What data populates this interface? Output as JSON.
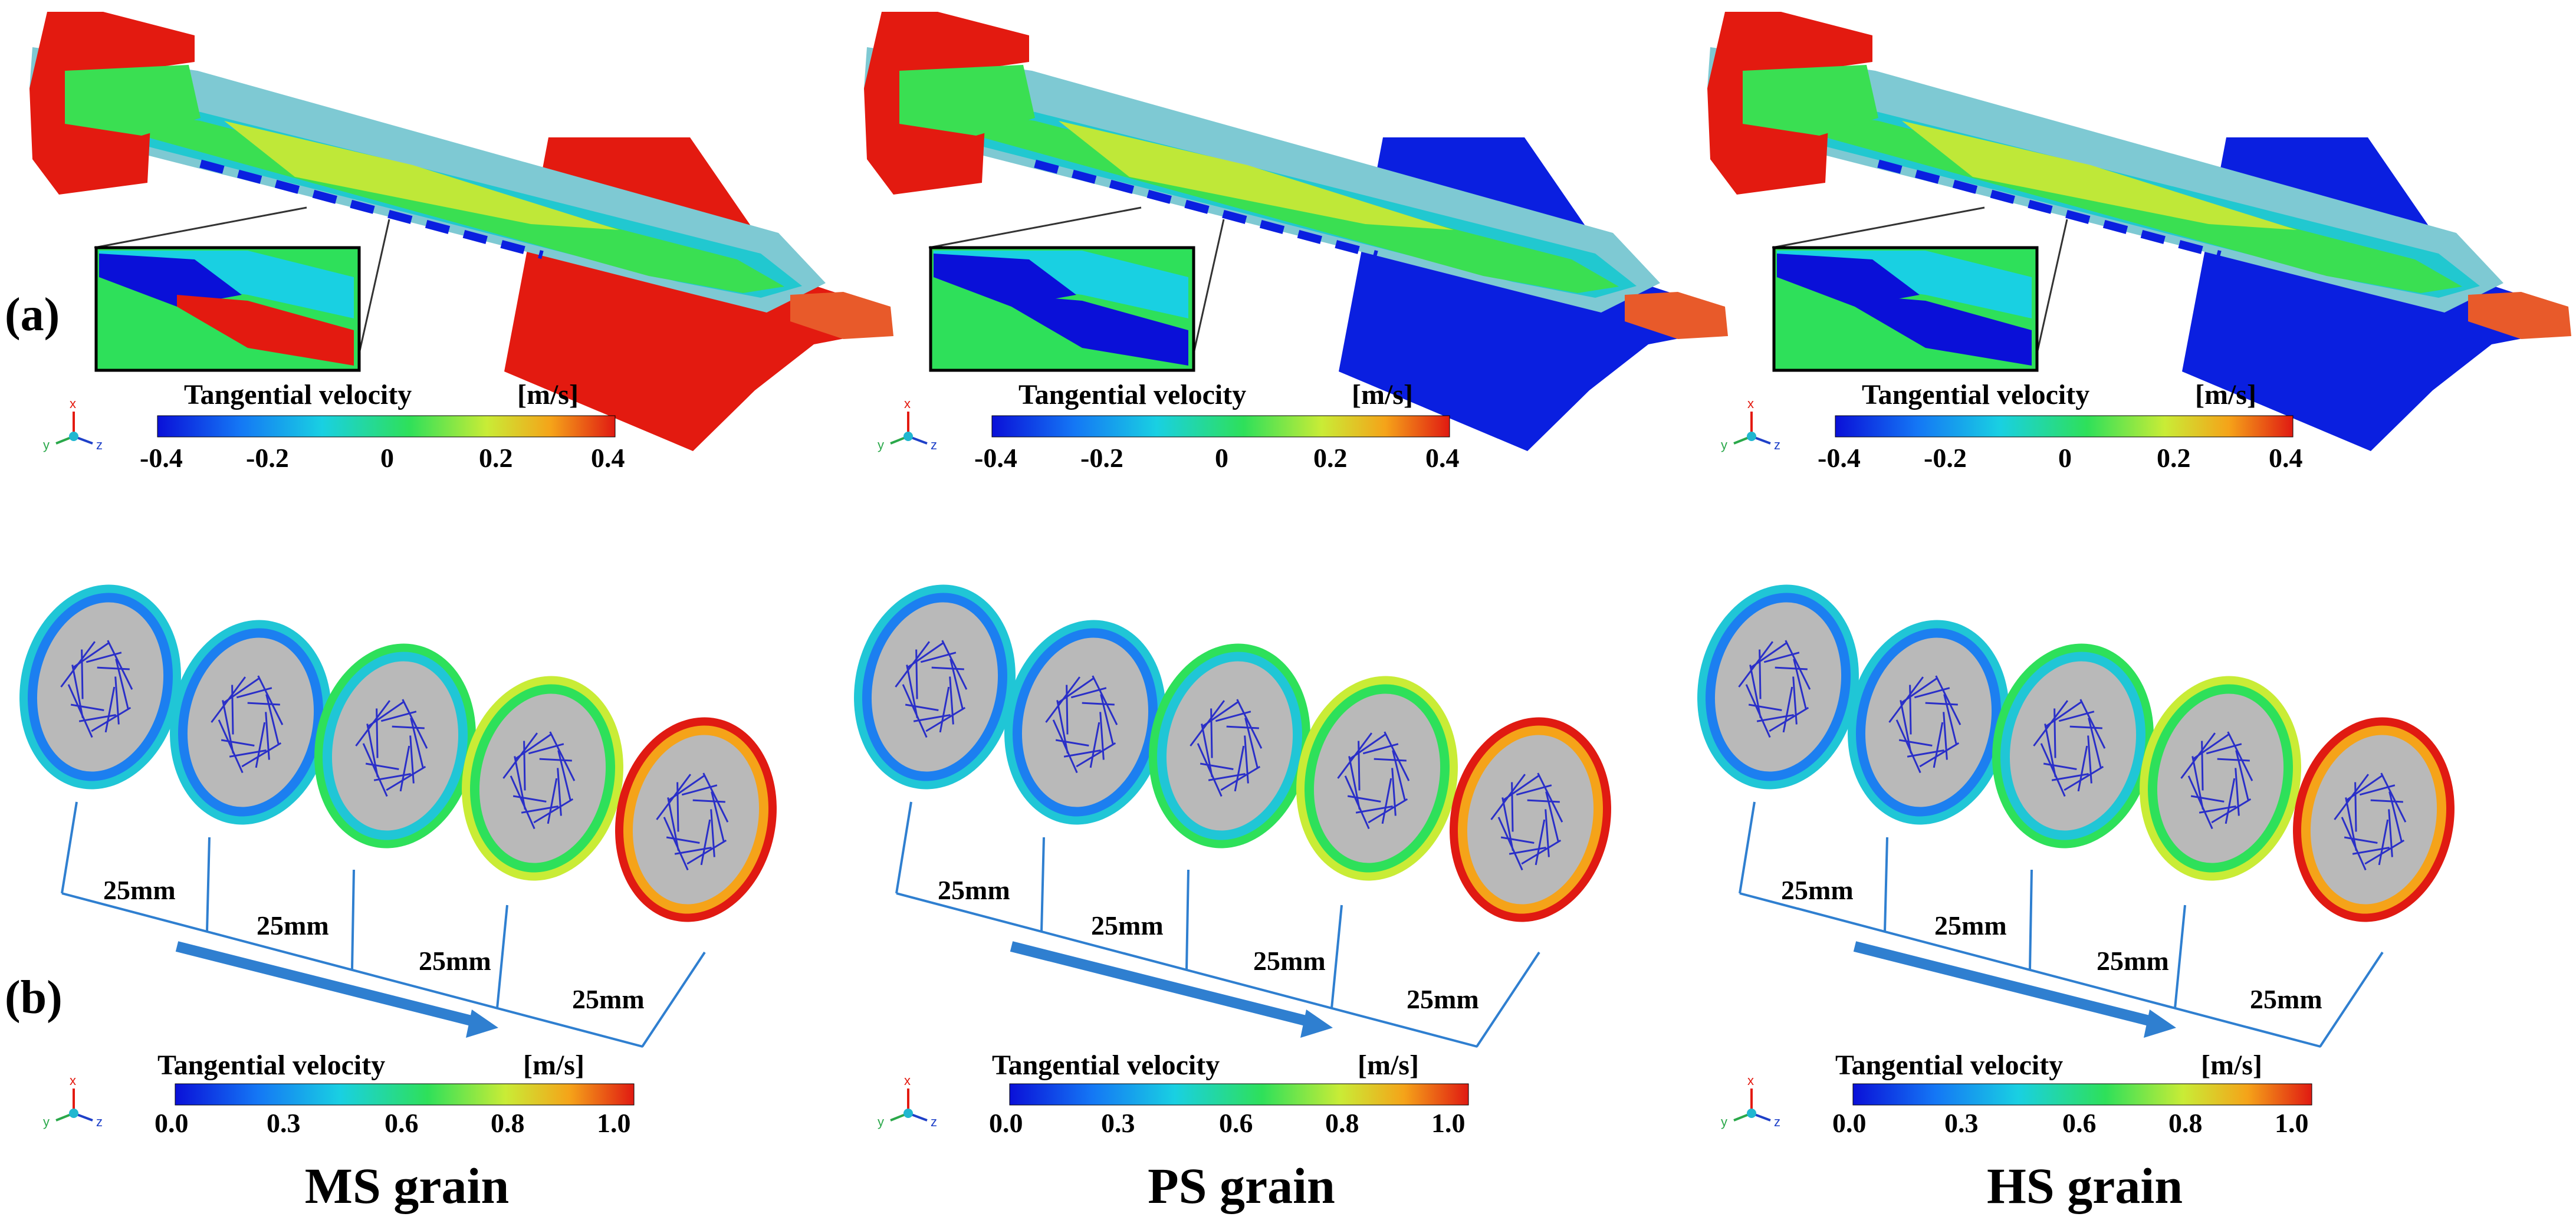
{
  "panel_labels": {
    "a": "(a)",
    "b": "(b)"
  },
  "columns": [
    {
      "grain_label": "MS grain",
      "injector_color": "#e31a10",
      "bands": [
        "#21c8d0",
        "#3adf52",
        "#bfe838"
      ]
    },
    {
      "grain_label": "PS grain",
      "injector_color": "#0a1fe0",
      "bands": [
        "#21c8d0",
        "#3adf52",
        "#bfe838"
      ]
    },
    {
      "grain_label": "HS grain",
      "injector_color": "#0a1fe0",
      "bands": [
        "#21c8d0",
        "#3adf52",
        "#bfe838"
      ]
    }
  ],
  "colorbar_a": {
    "title": "Tangential velocity",
    "unit": "[m/s]",
    "ticks": [
      "-0.4",
      "-0.2",
      "0",
      "0.2",
      "0.4"
    ]
  },
  "colorbar_b": {
    "title": "Tangential velocity",
    "unit": "[m/s]",
    "ticks": [
      "0.0",
      "0.3",
      "0.6",
      "0.8",
      "1.0"
    ]
  },
  "spacing_label": "25mm",
  "axis_triad": {
    "x": "x",
    "y": "y",
    "z": "z"
  },
  "colors": {
    "colormap": [
      "#0a10d8",
      "#1477f5",
      "#19d0e2",
      "#2ee05a",
      "#c9ec36",
      "#f5a319",
      "#e01a12"
    ],
    "grain_fill": "#b9b9b9",
    "arrow_blue": "#2f7fd0",
    "frame": "#3a3a3a"
  }
}
